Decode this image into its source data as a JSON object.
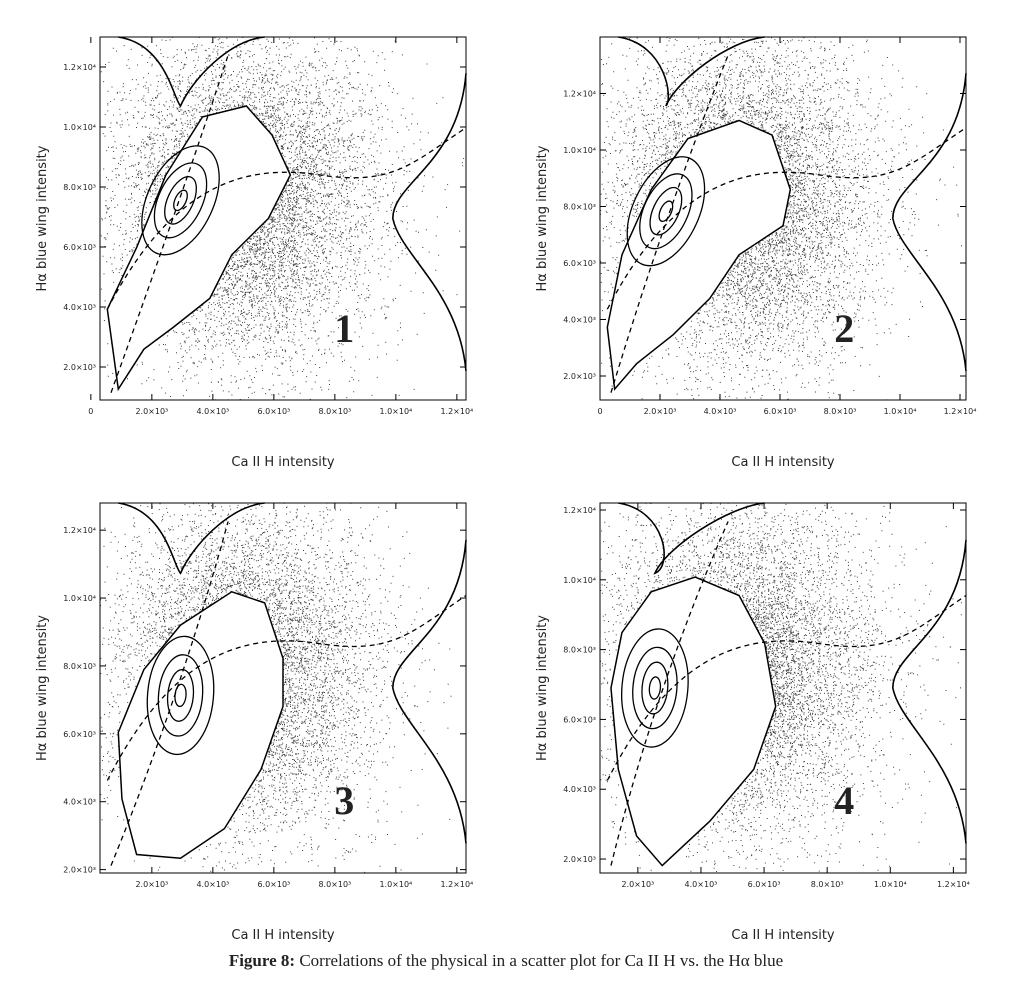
{
  "chart_data": [
    {
      "type": "scatter",
      "annotation": "1",
      "xlabel": "Ca II H intensity",
      "ylabel": "Hα blue wing intensity",
      "xlim": [
        300,
        12300
      ],
      "ylim": [
        900,
        13000
      ],
      "xticks": [
        0,
        {
          "value": 2000,
          "label": "2.0×10³"
        },
        {
          "value": 4000,
          "label": "4.0×10³"
        },
        {
          "value": 6000,
          "label": "6.0×10³"
        },
        {
          "value": 8000,
          "label": "8.0×10³"
        },
        {
          "value": 10000,
          "label": "1.0×10⁴"
        },
        {
          "value": 12000,
          "label": "1.2×10⁴"
        }
      ],
      "yticks": [
        {
          "value": 2000,
          "label": "2.0×10³"
        },
        {
          "value": 4000,
          "label": "4.0×10³"
        },
        {
          "value": 6000,
          "label": "6.0×10³"
        },
        {
          "value": 8000,
          "label": "8.0×10³"
        },
        {
          "value": 10000,
          "label": "1.0×10⁴"
        },
        {
          "value": 12000,
          "label": "1.2×10⁴"
        }
      ]
    },
    {
      "type": "scatter",
      "annotation": "2",
      "xlabel": "Ca II H intensity",
      "ylabel": "Hα blue wing intensity",
      "xlim": [
        0,
        12200
      ],
      "ylim": [
        1150,
        14000
      ],
      "xticks": [
        0,
        {
          "value": 2000,
          "label": "2.0×10³"
        },
        {
          "value": 4000,
          "label": "4.0×10³"
        },
        {
          "value": 6000,
          "label": "6.0×10³"
        },
        {
          "value": 8000,
          "label": "8.0×10³"
        },
        {
          "value": 10000,
          "label": "1.0×10⁴"
        },
        {
          "value": 12000,
          "label": "1.2×10⁴"
        }
      ],
      "yticks": [
        {
          "value": 2000,
          "label": "2.0×10³"
        },
        {
          "value": 4000,
          "label": "4.0×10³"
        },
        {
          "value": 6000,
          "label": "6.0×10³"
        },
        {
          "value": 8000,
          "label": "8.0×10³"
        },
        {
          "value": 10000,
          "label": "1.0×10⁴"
        },
        {
          "value": 12000,
          "label": "1.2×10⁴"
        }
      ]
    },
    {
      "type": "scatter",
      "annotation": "3",
      "xlabel": "Ca II H intensity",
      "ylabel": "Hα blue wing intensity",
      "xlim": [
        300,
        12300
      ],
      "ylim": [
        1900,
        12800
      ],
      "xticks": [
        {
          "value": 2000,
          "label": "2.0×10³"
        },
        {
          "value": 4000,
          "label": "4.0×10³"
        },
        {
          "value": 6000,
          "label": "6.0×10³"
        },
        {
          "value": 8000,
          "label": "8.0×10³"
        },
        {
          "value": 10000,
          "label": "1.0×10⁴"
        },
        {
          "value": 12000,
          "label": "1.2×10⁴"
        }
      ],
      "yticks": [
        {
          "value": 2000,
          "label": "2.0×10³"
        },
        {
          "value": 4000,
          "label": "4.0×10³"
        },
        {
          "value": 6000,
          "label": "6.0×10³"
        },
        {
          "value": 8000,
          "label": "8.0×10³"
        },
        {
          "value": 10000,
          "label": "1.0×10⁴"
        },
        {
          "value": 12000,
          "label": "1.2×10⁴"
        }
      ]
    },
    {
      "type": "scatter",
      "annotation": "4",
      "xlabel": "Ca II H intensity",
      "ylabel": "Hα blue wing intensity",
      "xlim": [
        800,
        12400
      ],
      "ylim": [
        1600,
        12200
      ],
      "xticks": [
        {
          "value": 2000,
          "label": "2.0×10³"
        },
        {
          "value": 4000,
          "label": "4.0×10³"
        },
        {
          "value": 6000,
          "label": "6.0×10³"
        },
        {
          "value": 8000,
          "label": "8.0×10³"
        },
        {
          "value": 10000,
          "label": "1.0×10⁴"
        },
        {
          "value": 12000,
          "label": "1.2×10⁴"
        }
      ],
      "yticks": [
        {
          "value": 2000,
          "label": "2.0×10³"
        },
        {
          "value": 4000,
          "label": "4.0×10³"
        },
        {
          "value": 6000,
          "label": "6.0×10³"
        },
        {
          "value": 8000,
          "label": "8.0×10³"
        },
        {
          "value": 10000,
          "label": "1.0×10⁴"
        },
        {
          "value": 12000,
          "label": "1.2×10⁴"
        }
      ]
    }
  ],
  "caption": {
    "label": "Figure 8:",
    "text": "Correlations of the physical in a scatter plot for Ca II H vs. the Hα blue"
  }
}
